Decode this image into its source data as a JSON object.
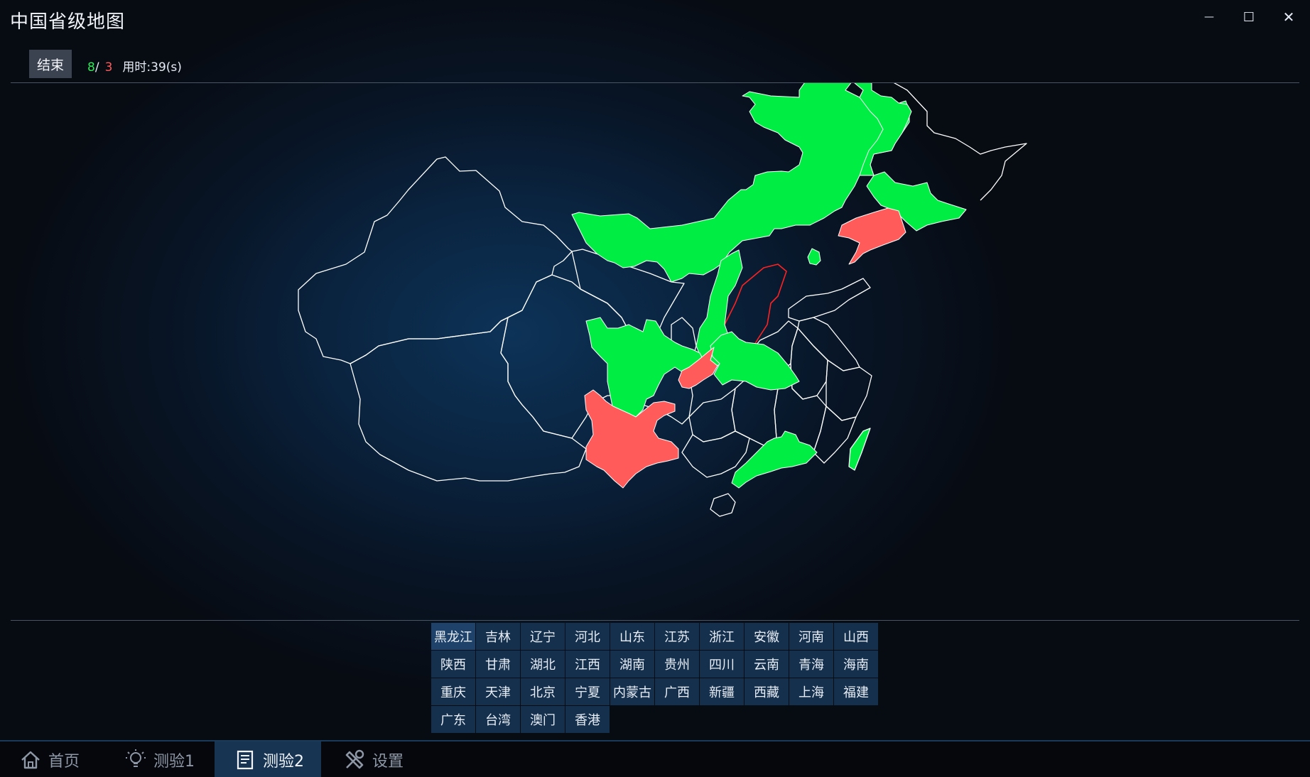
{
  "window": {
    "title": "中国省级地图",
    "controls": {
      "minimize": "—",
      "maximize": "☐",
      "close": "✕"
    }
  },
  "toolbar": {
    "end_label": "结束",
    "correct_count": "8",
    "separator": "/",
    "wrong_count": "3",
    "time_label": "用时:",
    "time_value": "39(s)"
  },
  "colors": {
    "correct": "#00ee44",
    "wrong": "#ff5b5b",
    "border": "#ffffff",
    "highlight_border": "#ff2222",
    "button_bg": "#14304d"
  },
  "provinces": [
    "黑龙江",
    "吉林",
    "辽宁",
    "河北",
    "山东",
    "江苏",
    "浙江",
    "安徽",
    "河南",
    "山西",
    "陕西",
    "甘肃",
    "湖北",
    "江西",
    "湖南",
    "贵州",
    "四川",
    "云南",
    "青海",
    "海南",
    "重庆",
    "天津",
    "北京",
    "宁夏",
    "内蒙古",
    "广西",
    "新疆",
    "西藏",
    "上海",
    "福建",
    "广东",
    "台湾",
    "澳门",
    "香港"
  ],
  "bottom_nav": [
    {
      "label": "首页",
      "icon": "home-icon",
      "active": false
    },
    {
      "label": "测验1",
      "icon": "lightbulb-icon",
      "active": false
    },
    {
      "label": "测验2",
      "icon": "document-icon",
      "active": true
    },
    {
      "label": "设置",
      "icon": "tools-icon",
      "active": false
    }
  ]
}
